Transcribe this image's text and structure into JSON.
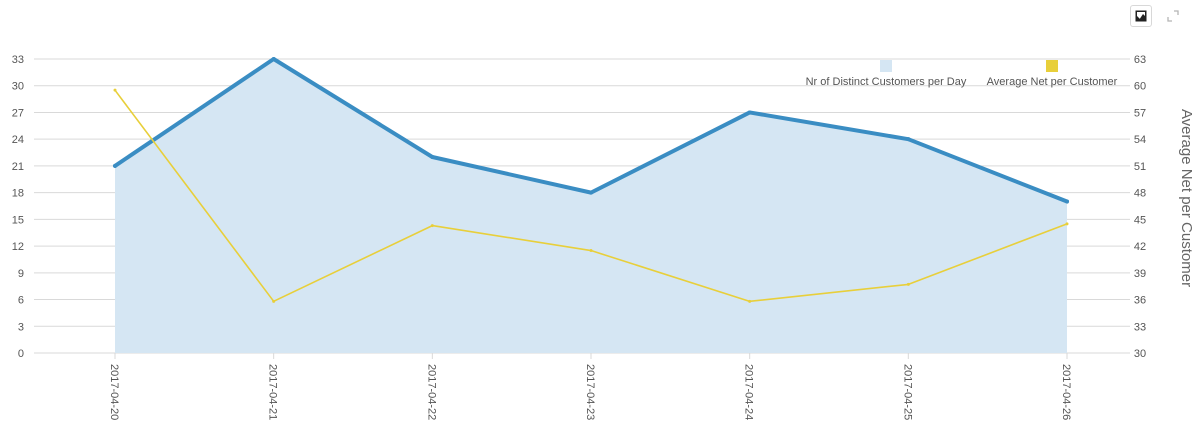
{
  "colors": {
    "area_fill": "#d5e6f3",
    "area_line": "#3a8dc3",
    "avg_line": "#e8cf3a",
    "grid": "#d9d9d9",
    "legend_customers": "#d5e6f3",
    "legend_avg": "#e8cf3a"
  },
  "toolbar": {
    "image_icon": "image-icon",
    "expand_icon": "expand-icon"
  },
  "chart_data": {
    "type": "line",
    "categories": [
      "2017-04-20",
      "2017-04-21",
      "2017-04-22",
      "2017-04-23",
      "2017-04-24",
      "2017-04-25",
      "2017-04-26"
    ],
    "series": [
      {
        "name": "Nr of Distinct Customers per Day",
        "kind": "area",
        "axis": "left",
        "values": [
          21,
          33,
          22,
          18,
          27,
          24,
          17
        ]
      },
      {
        "name": "Average Net per Customer",
        "kind": "line",
        "axis": "right",
        "values": [
          59.5,
          35.8,
          44.3,
          41.5,
          35.8,
          37.7,
          44.5
        ]
      }
    ],
    "y_left": {
      "min": 0,
      "max": 33,
      "ticks": [
        "0",
        "3",
        "6",
        "9",
        "12",
        "15",
        "18",
        "21",
        "24",
        "27",
        "30",
        "33"
      ],
      "label": ""
    },
    "y_right": {
      "min": 30,
      "max": 63,
      "ticks": [
        "30",
        "33",
        "36",
        "39",
        "42",
        "45",
        "48",
        "51",
        "54",
        "57",
        "60",
        "63"
      ],
      "label": "Average Net per Customer"
    },
    "grid": true,
    "legend_position": "top-right"
  }
}
